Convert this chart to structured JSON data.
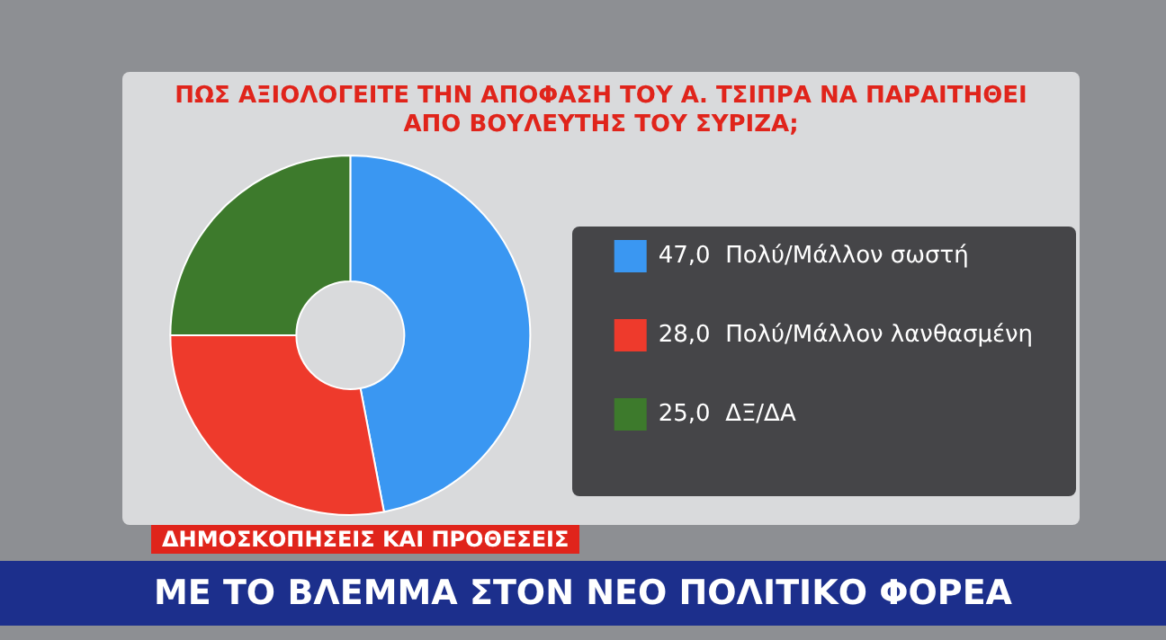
{
  "chart_data": {
    "type": "donut",
    "title": "ΠΩΣ ΑΞΙΟΛΟΓΕΙΤΕ ΤΗΝ ΑΠΟΦΑΣΗ ΤΟΥ Α. ΤΣΙΠΡΑ ΝΑ ΠΑΡΑΙΤΗΘΕΙ ΑΠΟ ΒΟΥΛΕΥΤΗΣ ΤΟΥ ΣΥΡΙΖΑ;",
    "categories": [
      "Πολύ/Μάλλον σωστή",
      "Πολύ/Μάλλον λανθασμένη",
      "ΔΞ/ΔΑ"
    ],
    "values": [
      47,
      28,
      25
    ],
    "value_labels": [
      "47,0",
      "28,0",
      "25,0"
    ],
    "colors": [
      "#3a97f2",
      "#ee3a2c",
      "#3d7a2c"
    ],
    "legend": "right",
    "annotations": [
      "ΔΗΜΟΣΚΟΠΗΣΕΙΣ ΚΑΙ ΠΡΟΘΕΣΕΙΣ",
      "ΜΕ ΤΟ ΒΛΕΜΜΑ ΣΤΟΝ ΝΕΟ ΠΟΛΙΤΙΚΟ ΦΟΡΕΑ"
    ]
  }
}
